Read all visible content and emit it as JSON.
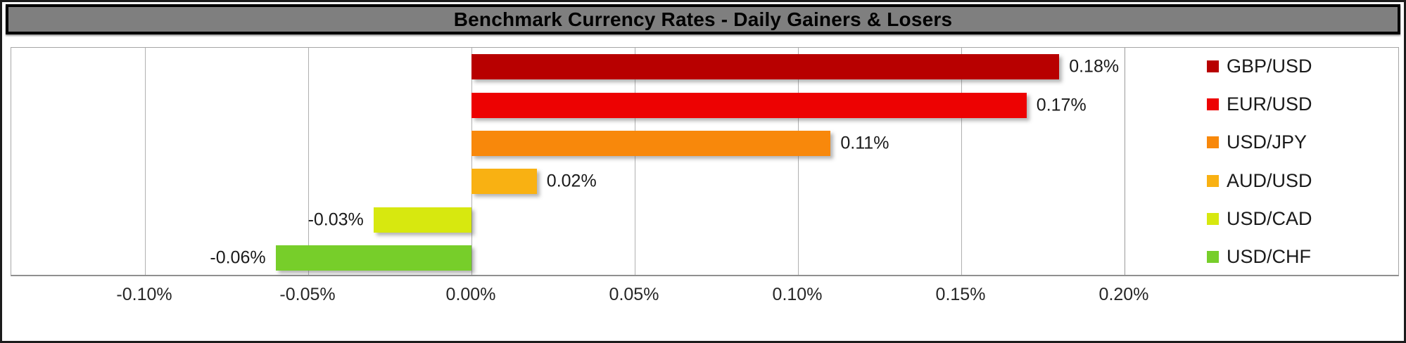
{
  "title": {
    "text": "Benchmark Currency Rates - Daily Gainers & Losers",
    "bg_color": "#7f7f7f",
    "text_color": "#000000",
    "border_color": "#000000"
  },
  "chart_data": {
    "type": "bar",
    "orientation": "horizontal",
    "title": "Benchmark Currency Rates - Daily Gainers & Losers",
    "categories": [
      "GBP/USD",
      "EUR/USD",
      "USD/JPY",
      "AUD/USD",
      "USD/CAD",
      "USD/CHF"
    ],
    "values": [
      0.18,
      0.17,
      0.11,
      0.02,
      -0.03,
      -0.06
    ],
    "value_labels": [
      "0.18%",
      "0.17%",
      "0.11%",
      "0.02%",
      "-0.03%",
      "-0.06%"
    ],
    "bar_colors": [
      "#b80000",
      "#ed0202",
      "#f8880b",
      "#f9b112",
      "#d7e80f",
      "#77ce2a"
    ],
    "xlabel": "",
    "ylabel": "",
    "xlim": [
      -0.1409,
      0.2
    ],
    "x_ticks": [
      {
        "value": -0.1,
        "label": "-0.10%"
      },
      {
        "value": -0.05,
        "label": "-0.05%"
      },
      {
        "value": 0.0,
        "label": "0.00%"
      },
      {
        "value": 0.05,
        "label": "0.05%"
      },
      {
        "value": 0.1,
        "label": "0.10%"
      },
      {
        "value": 0.15,
        "label": "0.15%"
      },
      {
        "value": 0.2,
        "label": "0.20%"
      }
    ],
    "grid": true,
    "legend_position": "right"
  },
  "legend": {
    "items": [
      {
        "label": "GBP/USD",
        "color": "#b80000"
      },
      {
        "label": "EUR/USD",
        "color": "#ed0202"
      },
      {
        "label": "USD/JPY",
        "color": "#f8880b"
      },
      {
        "label": "AUD/USD",
        "color": "#f9b112"
      },
      {
        "label": "USD/CAD",
        "color": "#d7e80f"
      },
      {
        "label": "USD/CHF",
        "color": "#77ce2a"
      }
    ]
  },
  "colors": {
    "frame_border": "#1c1c1c",
    "gridline": "#b0b0b0",
    "plot_border": "#a6a6a6",
    "axis_line": "#8f8f8f",
    "background": "#ffffff",
    "label_text": "#1a1a1a"
  }
}
